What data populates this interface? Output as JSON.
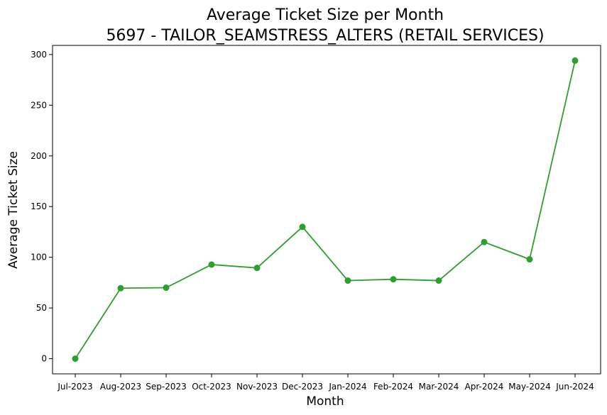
{
  "chart_data": {
    "type": "line",
    "title_line1": "Average Ticket Size per Month",
    "title_line2": "5697 - TAILOR_SEAMSTRESS_ALTERS (RETAIL SERVICES)",
    "xlabel": "Month",
    "ylabel": "Average Ticket Size",
    "categories": [
      "Jul-2023",
      "Aug-2023",
      "Sep-2023",
      "Oct-2023",
      "Nov-2023",
      "Dec-2023",
      "Jan-2024",
      "Feb-2024",
      "Mar-2024",
      "Apr-2024",
      "May-2024",
      "Jun-2024"
    ],
    "series": [
      {
        "values": [
          0,
          69.5,
          70,
          92.8,
          89.5,
          130,
          77,
          78.3,
          77,
          115,
          98,
          294
        ],
        "color": "#2ca02c",
        "marker": "circle"
      }
    ],
    "ylim": [
      -15,
      309
    ],
    "yticks": [
      0,
      50,
      100,
      150,
      200,
      250,
      300
    ],
    "grid": false,
    "legend": "none"
  }
}
